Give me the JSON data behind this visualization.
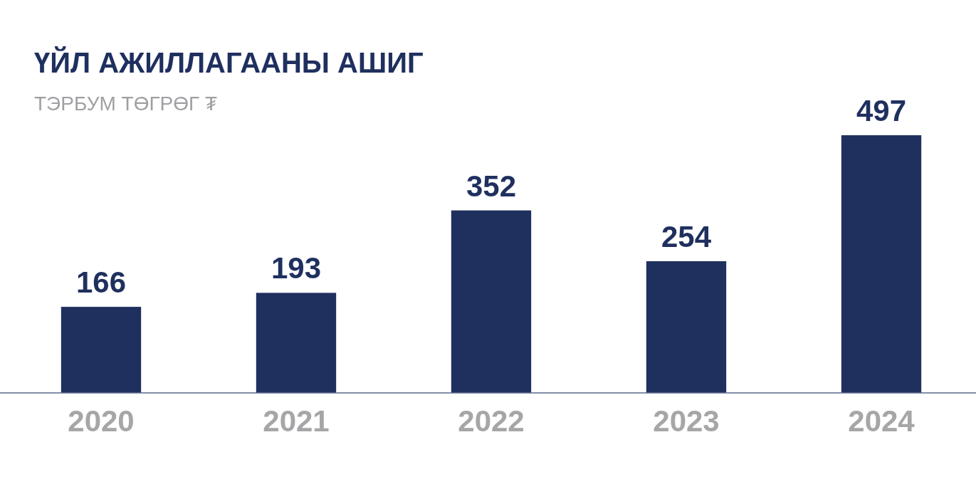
{
  "chart_data": {
    "type": "bar",
    "title": "ҮЙЛ АЖИЛЛАГААНЫ АШИГ",
    "subtitle": "ТЭРБУМ ТӨГРӨГ ₮",
    "categories": [
      "2020",
      "2021",
      "2022",
      "2023",
      "2024"
    ],
    "values": [
      166,
      193,
      352,
      254,
      497
    ],
    "color": "#1f305f",
    "data_labels": true
  }
}
